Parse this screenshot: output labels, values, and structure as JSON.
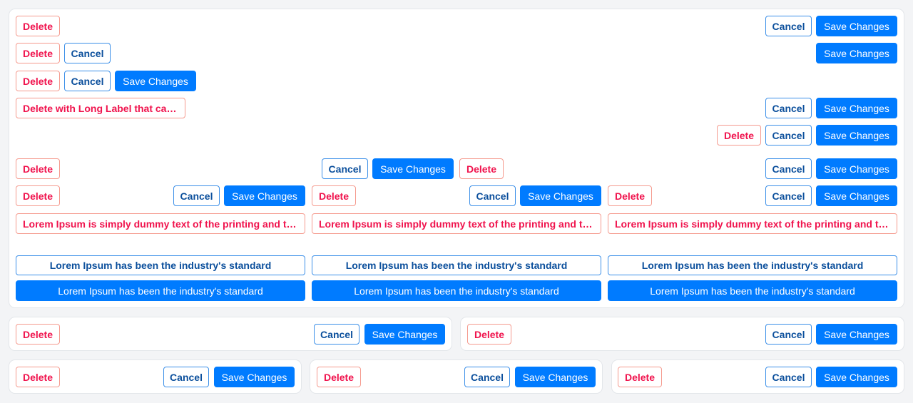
{
  "buttons": {
    "delete": "Delete",
    "cancel": "Cancel",
    "save": "Save Changes",
    "delete_long": "Delete with Long Label that can be truncated",
    "lorem_danger": "Lorem Ipsum is simply dummy text of the printing and typesetting industry",
    "lorem_outline": "Lorem Ipsum has been the industry's standard",
    "lorem_primary": "Lorem Ipsum has been the industry's standard"
  },
  "colors": {
    "danger": "#f0134d",
    "danger_border": "#f59a8e",
    "outline": "#0b4f9c",
    "primary": "#007bff",
    "page_bg": "#f3f4f6"
  }
}
